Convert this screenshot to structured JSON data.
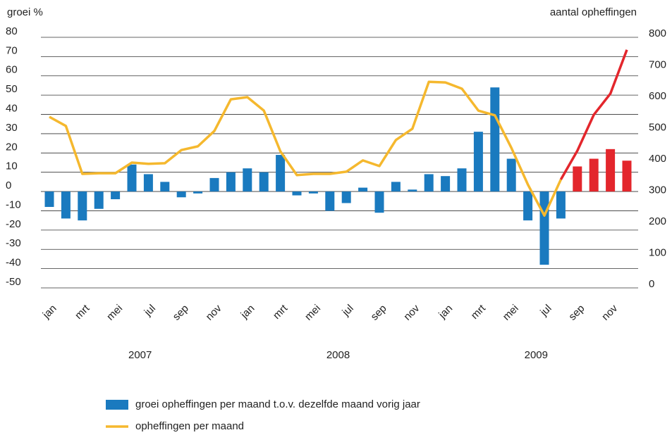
{
  "chart_data": {
    "type": "bar-line",
    "y_label": "groei %",
    "y2_label": "aantal opheffingen",
    "categories": [
      "jan",
      null,
      "mrt",
      null,
      "mei",
      null,
      "jul",
      null,
      "sep",
      null,
      "nov",
      null,
      "jan",
      null,
      "mrt",
      null,
      "mei",
      null,
      "jul",
      null,
      "sep",
      null,
      "nov",
      null,
      "jan",
      null,
      "mrt",
      null,
      "mei",
      null,
      "jul",
      null,
      "sep",
      null,
      "nov",
      null
    ],
    "years": [
      "2007",
      "2008",
      "2009"
    ],
    "ylim": [
      -50,
      80
    ],
    "yticks": [
      80,
      70,
      60,
      50,
      40,
      30,
      20,
      10,
      0,
      -10,
      -20,
      -30,
      -40,
      -50
    ],
    "y2lim": [
      0,
      800
    ],
    "y2ticks": [
      800,
      700,
      600,
      500,
      400,
      300,
      200,
      100,
      0
    ],
    "grid": true,
    "series": [
      {
        "name": "groei opheffingen per maand t.o.v. dezelfde maand vorig jaar",
        "type": "bar",
        "color": "#1a7abf",
        "colors": [
          "#1a7abf",
          "#1a7abf",
          "#1a7abf",
          "#1a7abf",
          "#1a7abf",
          "#1a7abf",
          "#1a7abf",
          "#1a7abf",
          "#1a7abf",
          "#1a7abf",
          "#1a7abf",
          "#1a7abf",
          "#1a7abf",
          "#1a7abf",
          "#1a7abf",
          "#1a7abf",
          "#1a7abf",
          "#1a7abf",
          "#1a7abf",
          "#1a7abf",
          "#1a7abf",
          "#1a7abf",
          "#1a7abf",
          "#1a7abf",
          "#1a7abf",
          "#1a7abf",
          "#1a7abf",
          "#1a7abf",
          "#1a7abf",
          "#1a7abf",
          "#1a7abf",
          "#1a7abf",
          "#e3262c",
          "#e3262c",
          "#e3262c",
          "#e3262c"
        ],
        "values": [
          -8,
          -14,
          -15,
          -9,
          -4,
          14,
          9,
          5,
          -3,
          -1,
          7,
          10,
          12,
          10,
          19,
          -2,
          -1,
          -10,
          -6,
          2,
          -11,
          5,
          1,
          9,
          8,
          12,
          31,
          54,
          17,
          -15,
          -38,
          -14,
          13,
          17,
          22,
          16
        ]
      },
      {
        "name": "opheffingen per maand",
        "type": "line",
        "axis": "y2",
        "color": "#f5b82e",
        "colors": [
          "#f5b82e",
          "#f5b82e",
          "#f5b82e",
          "#f5b82e",
          "#f5b82e",
          "#f5b82e",
          "#f5b82e",
          "#f5b82e",
          "#f5b82e",
          "#f5b82e",
          "#f5b82e",
          "#f5b82e",
          "#f5b82e",
          "#f5b82e",
          "#f5b82e",
          "#f5b82e",
          "#f5b82e",
          "#f5b82e",
          "#f5b82e",
          "#f5b82e",
          "#f5b82e",
          "#f5b82e",
          "#f5b82e",
          "#f5b82e",
          "#f5b82e",
          "#f5b82e",
          "#f5b82e",
          "#f5b82e",
          "#f5b82e",
          "#f5b82e",
          "#f5b82e",
          "#f5b82e",
          "#e3262c",
          "#e3262c",
          "#e3262c",
          "#e3262c"
        ],
        "values": [
          546,
          517,
          364,
          366,
          366,
          400,
          396,
          398,
          440,
          452,
          501,
          602,
          609,
          566,
          436,
          360,
          364,
          364,
          371,
          407,
          389,
          472,
          508,
          658,
          656,
          636,
          566,
          551,
          447,
          330,
          231,
          346,
          438,
          553,
          620,
          760
        ]
      }
    ]
  }
}
